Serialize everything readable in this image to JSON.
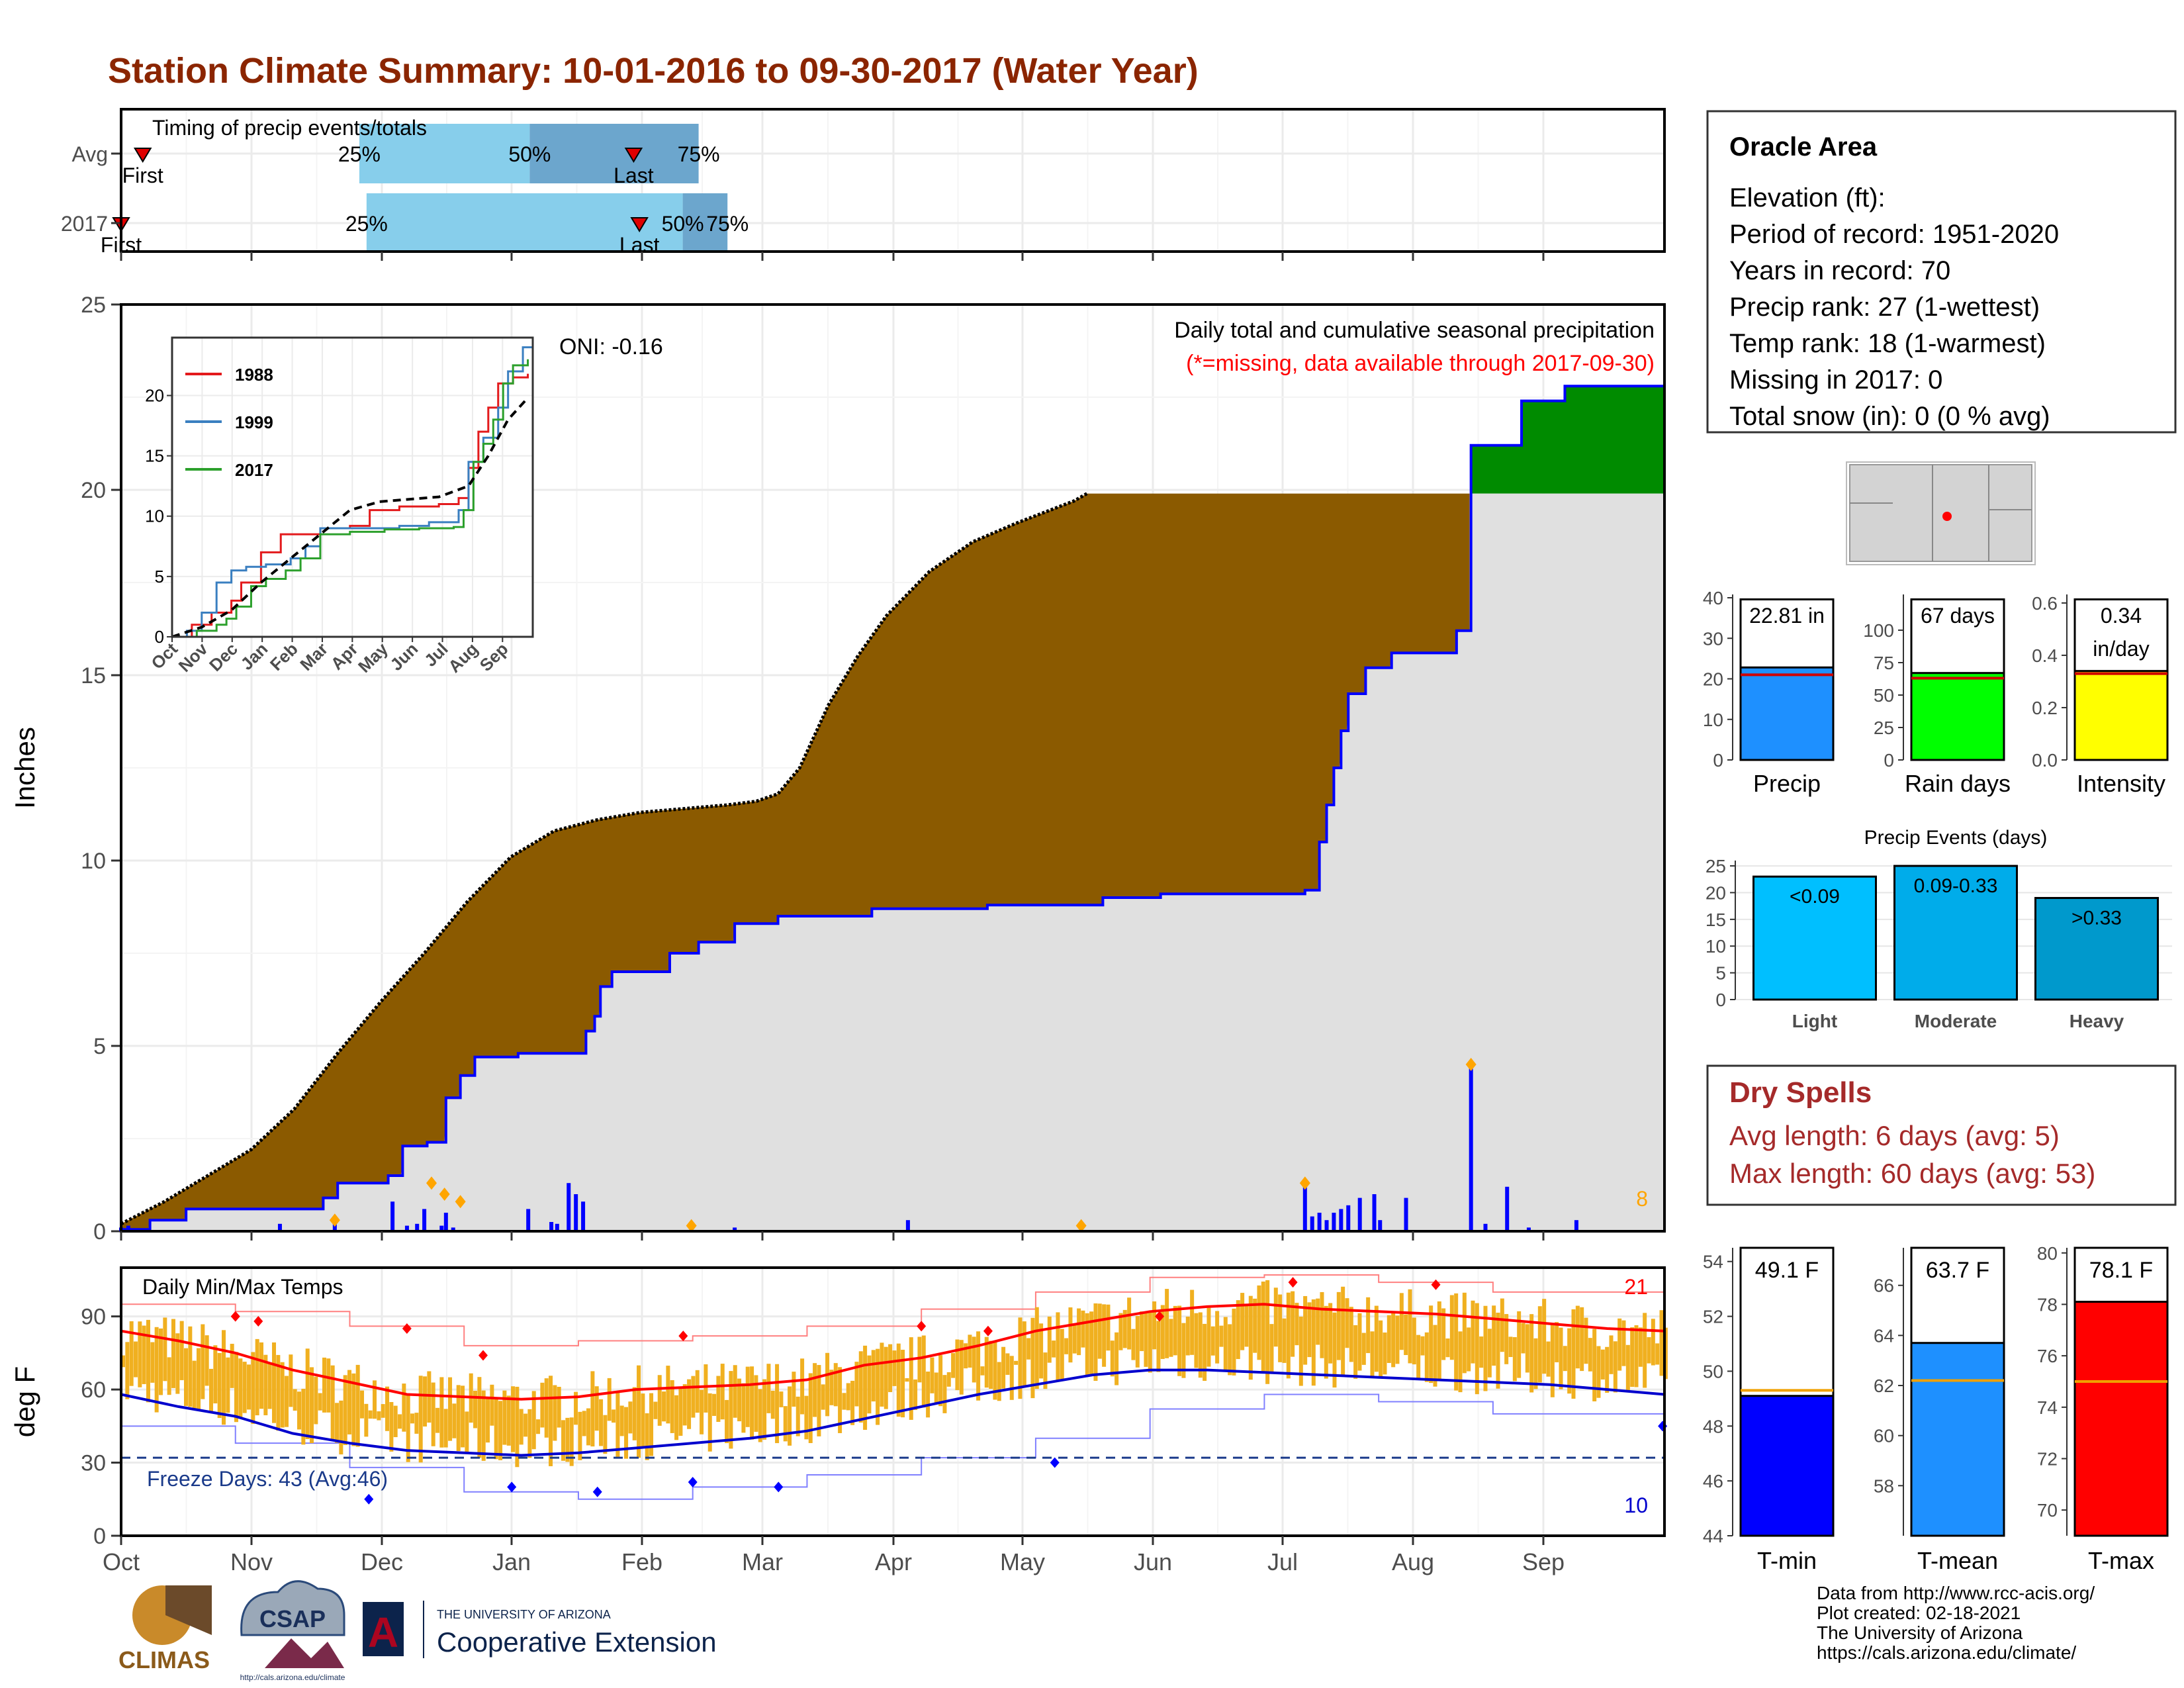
{
  "title": "Station Climate Summary: 10-01-2016 to 09-30-2017 (Water Year)",
  "months": [
    "Oct",
    "Nov",
    "Dec",
    "Jan",
    "Feb",
    "Mar",
    "Apr",
    "May",
    "Jun",
    "Jul",
    "Aug",
    "Sep"
  ],
  "timing": {
    "label": "Timing of precip events/totals",
    "rows": [
      {
        "name": "Avg",
        "first_label": "First",
        "last_label": "Last",
        "first_day": 15,
        "last_day": 355,
        "p25": 165,
        "p50": 283,
        "p75": 400
      },
      {
        "name": "2017",
        "first_label": "First",
        "last_label": "Last",
        "first_day": 0,
        "last_day": 359,
        "p25": 170,
        "p50": 389,
        "p75": 420
      }
    ],
    "pct_labels": [
      "25%",
      "50%",
      "75%"
    ]
  },
  "precip_chart": {
    "ylabel": "Inches",
    "yticks": [
      0,
      5,
      10,
      15,
      20,
      25
    ],
    "ylim": [
      0,
      25
    ],
    "title_line1": "Daily total and cumulative seasonal precipitation",
    "title_line2": "(*=missing, data available through 2017-09-30)",
    "oni": "ONI: -0.16",
    "corner_count": "8",
    "avg_cumulative": [
      [
        0,
        0.2
      ],
      [
        30,
        0.8
      ],
      [
        60,
        1.5
      ],
      [
        90,
        2.2
      ],
      [
        120,
        3.3
      ],
      [
        150,
        4.8
      ],
      [
        180,
        6.2
      ],
      [
        210,
        7.5
      ],
      [
        240,
        8.9
      ],
      [
        270,
        10.1
      ],
      [
        300,
        10.8
      ],
      [
        330,
        11.1
      ],
      [
        360,
        11.3
      ],
      [
        390,
        11.4
      ],
      [
        420,
        11.5
      ],
      [
        440,
        11.6
      ],
      [
        455,
        11.8
      ],
      [
        470,
        12.5
      ],
      [
        490,
        14.2
      ],
      [
        510,
        15.5
      ],
      [
        530,
        16.6
      ],
      [
        560,
        17.8
      ],
      [
        590,
        18.6
      ],
      [
        620,
        19.1
      ],
      [
        640,
        19.4
      ],
      [
        660,
        19.7
      ],
      [
        669,
        19.9
      ]
    ],
    "obs_cumulative": [
      [
        0,
        0.05
      ],
      [
        20,
        0.3
      ],
      [
        45,
        0.6
      ],
      [
        105,
        0.6
      ],
      [
        140,
        0.9
      ],
      [
        150,
        1.3
      ],
      [
        185,
        1.5
      ],
      [
        195,
        2.3
      ],
      [
        212,
        2.4
      ],
      [
        225,
        3.6
      ],
      [
        235,
        4.2
      ],
      [
        245,
        4.7
      ],
      [
        275,
        4.8
      ],
      [
        322,
        5.4
      ],
      [
        328,
        5.8
      ],
      [
        332,
        6.6
      ],
      [
        340,
        7.0
      ],
      [
        380,
        7.5
      ],
      [
        400,
        7.8
      ],
      [
        425,
        8.3
      ],
      [
        455,
        8.5
      ],
      [
        520,
        8.7
      ],
      [
        600,
        8.8
      ],
      [
        680,
        9.0
      ],
      [
        720,
        9.1
      ],
      [
        810,
        9.1
      ],
      [
        820,
        9.2
      ],
      [
        830,
        10.5
      ],
      [
        835,
        11.5
      ],
      [
        840,
        12.5
      ],
      [
        845,
        13.5
      ],
      [
        850,
        14.5
      ],
      [
        862,
        15.2
      ],
      [
        880,
        15.6
      ],
      [
        900,
        15.6
      ],
      [
        925,
        16.2
      ],
      [
        930,
        16.2
      ],
      [
        935,
        21.2
      ],
      [
        965,
        21.2
      ],
      [
        970,
        22.4
      ],
      [
        990,
        22.4
      ],
      [
        1000,
        22.8
      ],
      [
        1060,
        22.8
      ],
      [
        1069,
        22.81
      ]
    ],
    "bars": [
      [
        0,
        0.1
      ],
      [
        5,
        0.15
      ],
      [
        110,
        0.2
      ],
      [
        148,
        0.3
      ],
      [
        188,
        0.8
      ],
      [
        198,
        0.15
      ],
      [
        205,
        0.2
      ],
      [
        210,
        0.6
      ],
      [
        222,
        0.15
      ],
      [
        225,
        0.5
      ],
      [
        230,
        0.1
      ],
      [
        282,
        0.6
      ],
      [
        298,
        0.25
      ],
      [
        302,
        0.2
      ],
      [
        310,
        1.3
      ],
      [
        315,
        1.0
      ],
      [
        320,
        0.8
      ],
      [
        395,
        0.15
      ],
      [
        425,
        0.1
      ],
      [
        545,
        0.3
      ],
      [
        820,
        1.3
      ],
      [
        825,
        0.4
      ],
      [
        830,
        0.5
      ],
      [
        835,
        0.3
      ],
      [
        840,
        0.5
      ],
      [
        845,
        0.6
      ],
      [
        850,
        0.7
      ],
      [
        858,
        0.9
      ],
      [
        868,
        1.0
      ],
      [
        872,
        0.3
      ],
      [
        890,
        0.9
      ],
      [
        935,
        4.5
      ],
      [
        945,
        0.2
      ],
      [
        960,
        1.2
      ],
      [
        975,
        0.1
      ],
      [
        1008,
        0.3
      ]
    ],
    "markers": [
      [
        148,
        0.3
      ],
      [
        215,
        1.3
      ],
      [
        224,
        1.0
      ],
      [
        235,
        0.8
      ],
      [
        395,
        0.15
      ],
      [
        665,
        0.15
      ],
      [
        820,
        1.3
      ],
      [
        935,
        4.5
      ]
    ]
  },
  "inset": {
    "legend": [
      "1988",
      "1999",
      "2017"
    ],
    "yticks": [
      0,
      5,
      10,
      15,
      20
    ],
    "xticks": [
      "Oct",
      "Nov",
      "Dec",
      "Jan",
      "Feb",
      "Mar",
      "Apr",
      "May",
      "Jun",
      "Jul",
      "Aug",
      "Sep"
    ],
    "series": [
      {
        "name": "1988",
        "color": "#e31a1c",
        "points": [
          [
            0,
            0
          ],
          [
            20,
            1
          ],
          [
            40,
            2
          ],
          [
            60,
            3
          ],
          [
            70,
            4.5
          ],
          [
            90,
            7
          ],
          [
            110,
            8.5
          ],
          [
            150,
            9.0
          ],
          [
            180,
            9.2
          ],
          [
            200,
            10.5
          ],
          [
            230,
            10.8
          ],
          [
            270,
            11.0
          ],
          [
            290,
            11.5
          ],
          [
            300,
            14
          ],
          [
            310,
            17
          ],
          [
            320,
            19
          ],
          [
            330,
            21
          ],
          [
            345,
            21.5
          ],
          [
            360,
            21.8
          ]
        ]
      },
      {
        "name": "1999",
        "color": "#3a7fc0",
        "points": [
          [
            0,
            0
          ],
          [
            15,
            0.5
          ],
          [
            30,
            2
          ],
          [
            45,
            4.5
          ],
          [
            60,
            5.5
          ],
          [
            75,
            5.8
          ],
          [
            95,
            6.0
          ],
          [
            120,
            6.5
          ],
          [
            135,
            7.5
          ],
          [
            150,
            9.0
          ],
          [
            200,
            9.0
          ],
          [
            230,
            9.2
          ],
          [
            260,
            9.5
          ],
          [
            290,
            10.5
          ],
          [
            300,
            14.5
          ],
          [
            315,
            16.5
          ],
          [
            330,
            19
          ],
          [
            340,
            22
          ],
          [
            355,
            24
          ],
          [
            365,
            24.5
          ]
        ]
      },
      {
        "name": "2017",
        "color": "#2ca02c",
        "points": [
          [
            0,
            0
          ],
          [
            25,
            0.5
          ],
          [
            45,
            1.0
          ],
          [
            55,
            1.5
          ],
          [
            65,
            2.5
          ],
          [
            80,
            4.2
          ],
          [
            95,
            4.8
          ],
          [
            115,
            5.5
          ],
          [
            130,
            6.5
          ],
          [
            150,
            8.5
          ],
          [
            180,
            8.7
          ],
          [
            215,
            8.9
          ],
          [
            250,
            9.0
          ],
          [
            285,
            9.1
          ],
          [
            295,
            10.5
          ],
          [
            305,
            14.5
          ],
          [
            315,
            16
          ],
          [
            325,
            18
          ],
          [
            335,
            21
          ],
          [
            345,
            22.5
          ],
          [
            360,
            23
          ]
        ]
      },
      {
        "name": "avg",
        "color": "#000000",
        "points": [
          [
            0,
            0
          ],
          [
            30,
            0.8
          ],
          [
            60,
            2.2
          ],
          [
            90,
            4.5
          ],
          [
            120,
            6.5
          ],
          [
            150,
            8.5
          ],
          [
            180,
            10.5
          ],
          [
            210,
            11.2
          ],
          [
            240,
            11.4
          ],
          [
            270,
            11.6
          ],
          [
            300,
            12.5
          ],
          [
            320,
            15
          ],
          [
            340,
            18
          ],
          [
            360,
            19.8
          ]
        ]
      }
    ]
  },
  "temp_chart": {
    "ylabel": "deg F",
    "yticks": [
      0,
      30,
      60,
      90
    ],
    "ylim": [
      0,
      110
    ],
    "title": "Daily Min/Max Temps",
    "freeze": "Freeze Days: 43 (Avg:46)",
    "freeze_line": 32,
    "count_high": "21",
    "count_low": "10",
    "avg_max": [
      [
        0,
        84
      ],
      [
        30,
        80
      ],
      [
        60,
        75
      ],
      [
        90,
        68
      ],
      [
        120,
        63
      ],
      [
        150,
        58
      ],
      [
        180,
        57
      ],
      [
        210,
        56
      ],
      [
        240,
        57
      ],
      [
        270,
        60
      ],
      [
        300,
        61
      ],
      [
        330,
        62
      ],
      [
        360,
        64
      ],
      [
        390,
        70
      ],
      [
        420,
        73
      ],
      [
        450,
        78
      ],
      [
        480,
        84
      ],
      [
        510,
        88
      ],
      [
        540,
        92
      ],
      [
        570,
        94
      ],
      [
        600,
        95
      ],
      [
        630,
        93
      ],
      [
        660,
        92
      ],
      [
        690,
        91
      ],
      [
        720,
        89
      ],
      [
        750,
        87
      ],
      [
        780,
        85
      ],
      [
        810,
        84
      ]
    ],
    "avg_min": [
      [
        0,
        58
      ],
      [
        30,
        53
      ],
      [
        60,
        49
      ],
      [
        90,
        42
      ],
      [
        120,
        38
      ],
      [
        150,
        35
      ],
      [
        180,
        34
      ],
      [
        210,
        33
      ],
      [
        240,
        34
      ],
      [
        270,
        36
      ],
      [
        300,
        38
      ],
      [
        330,
        40
      ],
      [
        360,
        43
      ],
      [
        390,
        48
      ],
      [
        420,
        53
      ],
      [
        450,
        58
      ],
      [
        480,
        62
      ],
      [
        510,
        66
      ],
      [
        540,
        68
      ],
      [
        570,
        68
      ],
      [
        600,
        67
      ],
      [
        630,
        66
      ],
      [
        660,
        65
      ],
      [
        690,
        64
      ],
      [
        720,
        63
      ],
      [
        750,
        62
      ],
      [
        780,
        60
      ],
      [
        810,
        58
      ]
    ],
    "rec_max": [
      [
        0,
        95
      ],
      [
        60,
        92
      ],
      [
        120,
        86
      ],
      [
        180,
        78
      ],
      [
        240,
        80
      ],
      [
        300,
        82
      ],
      [
        360,
        86
      ],
      [
        420,
        93
      ],
      [
        480,
        100
      ],
      [
        540,
        106
      ],
      [
        600,
        107
      ],
      [
        660,
        104
      ],
      [
        720,
        100
      ],
      [
        810,
        95
      ]
    ],
    "rec_min": [
      [
        0,
        45
      ],
      [
        60,
        38
      ],
      [
        120,
        28
      ],
      [
        180,
        18
      ],
      [
        240,
        15
      ],
      [
        300,
        20
      ],
      [
        360,
        25
      ],
      [
        420,
        32
      ],
      [
        480,
        40
      ],
      [
        540,
        52
      ],
      [
        600,
        58
      ],
      [
        660,
        55
      ],
      [
        720,
        50
      ],
      [
        810,
        42
      ]
    ],
    "highs": [
      [
        60,
        90
      ],
      [
        72,
        88
      ],
      [
        150,
        85
      ],
      [
        190,
        74
      ],
      [
        295,
        82
      ],
      [
        420,
        86
      ],
      [
        455,
        84
      ],
      [
        545,
        90
      ],
      [
        615,
        104
      ],
      [
        690,
        103
      ]
    ],
    "lows": [
      [
        130,
        15
      ],
      [
        205,
        20
      ],
      [
        250,
        18
      ],
      [
        300,
        22
      ],
      [
        345,
        20
      ],
      [
        490,
        30
      ],
      [
        809,
        45
      ]
    ]
  },
  "station": {
    "name": "Oracle Area",
    "lines": [
      "Elevation (ft):",
      "Period of record: 1951-2020",
      "Years in record: 70",
      "Precip rank: 27 (1-wettest)",
      "Temp rank: 18 (1-warmest)",
      "Missing in 2017: 0",
      "Total snow (in): 0 (0 % avg)"
    ]
  },
  "mini_bars": [
    {
      "label": "Precip",
      "value": 22.81,
      "value_text": "22.81 in",
      "avg": 21,
      "max": 40,
      "ticks": [
        0,
        10,
        20,
        30,
        40
      ],
      "color": "#1e90ff"
    },
    {
      "label": "Rain days",
      "value": 67,
      "value_text": "67 days",
      "avg": 63,
      "max": 125,
      "ticks": [
        0,
        25,
        50,
        75,
        100
      ],
      "color": "#00ff00"
    },
    {
      "label": "Intensity",
      "value": 0.34,
      "value_text": "0.34",
      "value_text2": "in/day",
      "avg": 0.33,
      "max": 0.62,
      "ticks": [
        "0.0",
        "0.2",
        "0.4",
        "0.6"
      ],
      "color": "#ffff00"
    }
  ],
  "events": {
    "title": "Precip Events (days)",
    "ticks": [
      0,
      5,
      10,
      15,
      20,
      25
    ],
    "max": 26,
    "bars": [
      {
        "category": "Light",
        "range": "<0.09",
        "value": 23,
        "color": "#00bfff"
      },
      {
        "category": "Moderate",
        "range": "0.09-0.33",
        "value": 25,
        "color": "#00acea"
      },
      {
        "category": "Heavy",
        "range": ">0.33",
        "value": 19,
        "color": "#0099cc"
      }
    ]
  },
  "dry_spells": {
    "title": "Dry Spells",
    "line1": "Avg length: 6 days (avg: 5)",
    "line2": "Max length: 60 days (avg: 53)"
  },
  "temp_bars": [
    {
      "label": "T-min",
      "value": 49.1,
      "value_text": "49.1 F",
      "avg": 49.3,
      "min": 44,
      "max": 54.5,
      "ticks": [
        44,
        46,
        48,
        50,
        52,
        54
      ],
      "color": "#0000ff"
    },
    {
      "label": "T-mean",
      "value": 63.7,
      "value_text": "63.7 F",
      "avg": 62.2,
      "min": 56,
      "max": 67.5,
      "ticks": [
        58,
        60,
        62,
        64,
        66
      ],
      "color": "#1e90ff"
    },
    {
      "label": "T-max",
      "value": 78.1,
      "value_text": "78.1 F",
      "avg": 75,
      "min": 69,
      "max": 80.2,
      "ticks": [
        70,
        72,
        74,
        76,
        78,
        80
      ],
      "color": "#ff0000"
    }
  ],
  "footer": {
    "lines": [
      "Data from http://www.rcc-acis.org/",
      "Plot created: 02-18-2021",
      "The University of Arizona",
      "https://cals.arizona.edu/climate/"
    ],
    "climas": "CLIMAS",
    "csap": "CSAP",
    "csap_url": "http://cals.arizona.edu/climate",
    "ua_small": "THE UNIVERSITY OF ARIZONA",
    "ua_big": "Cooperative Extension",
    "ua_letter": "A"
  },
  "colors": {
    "title": "#8b2500",
    "brown": "#8b5a00",
    "green": "#008b00",
    "obs_line": "#0000ff",
    "grey_fill": "#e0e0e0",
    "temp_bar": "#f0b020",
    "dry_title": "#a52a2a"
  }
}
